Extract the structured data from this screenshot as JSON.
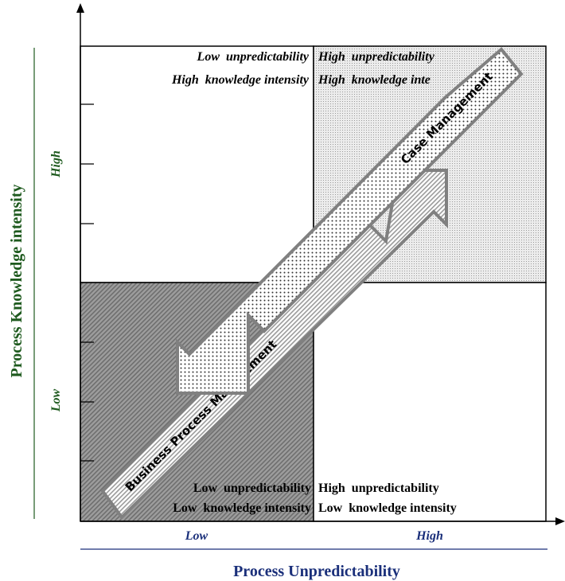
{
  "diagram": {
    "y_axis": {
      "label": "Process Knowledge intensity",
      "levels": {
        "high": "High",
        "low": "Low"
      },
      "label_color": "#1e5a1e"
    },
    "x_axis": {
      "label": "Process Unpredictability",
      "levels": {
        "low": "Low",
        "high": "High"
      },
      "label_color": "#1a2f7a"
    },
    "quadrants": {
      "top_left": {
        "line1": "Low  unpredictability",
        "line2": "High  knowledge intensity"
      },
      "top_right": {
        "line1": "High  unpredictability",
        "line2": "High  knowledge inte"
      },
      "bottom_left": {
        "line1": "Low  unpredictability",
        "line2": "Low  knowledge intensity"
      },
      "bottom_right": {
        "line1": "High  unpredictability",
        "line2": "Low  knowledge intensity"
      }
    },
    "arrows": {
      "case_management": "Case Management",
      "business_process_management": "Business Process Management"
    }
  }
}
